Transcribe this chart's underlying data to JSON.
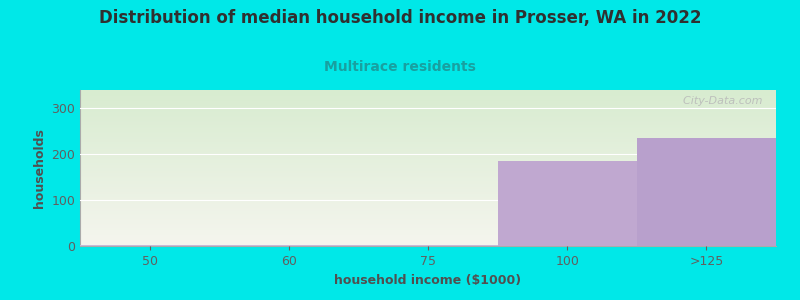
{
  "title": "Distribution of median household income in Prosser, WA in 2022",
  "subtitle": "Multirace residents",
  "xlabel": "household income ($1000)",
  "ylabel": "households",
  "categories": [
    "50",
    "60",
    "75",
    "100",
    ">125"
  ],
  "values": [
    2,
    2,
    2,
    185,
    235
  ],
  "bar_colors": [
    "#c8b8d8",
    "#c8b8d8",
    "#c8b8d8",
    "#c0a8d0",
    "#b8a0cc"
  ],
  "background_color": "#00e8e8",
  "plot_bg_top": "#d8ecd0",
  "plot_bg_bottom": "#f5f5ee",
  "title_color": "#303030",
  "subtitle_color": "#18a0a0",
  "axis_label_color": "#505050",
  "tick_color": "#606060",
  "watermark": "  City-Data.com",
  "ylim": [
    0,
    340
  ],
  "yticks": [
    0,
    100,
    200,
    300
  ],
  "title_fontsize": 12,
  "subtitle_fontsize": 10,
  "label_fontsize": 9,
  "tick_fontsize": 9
}
